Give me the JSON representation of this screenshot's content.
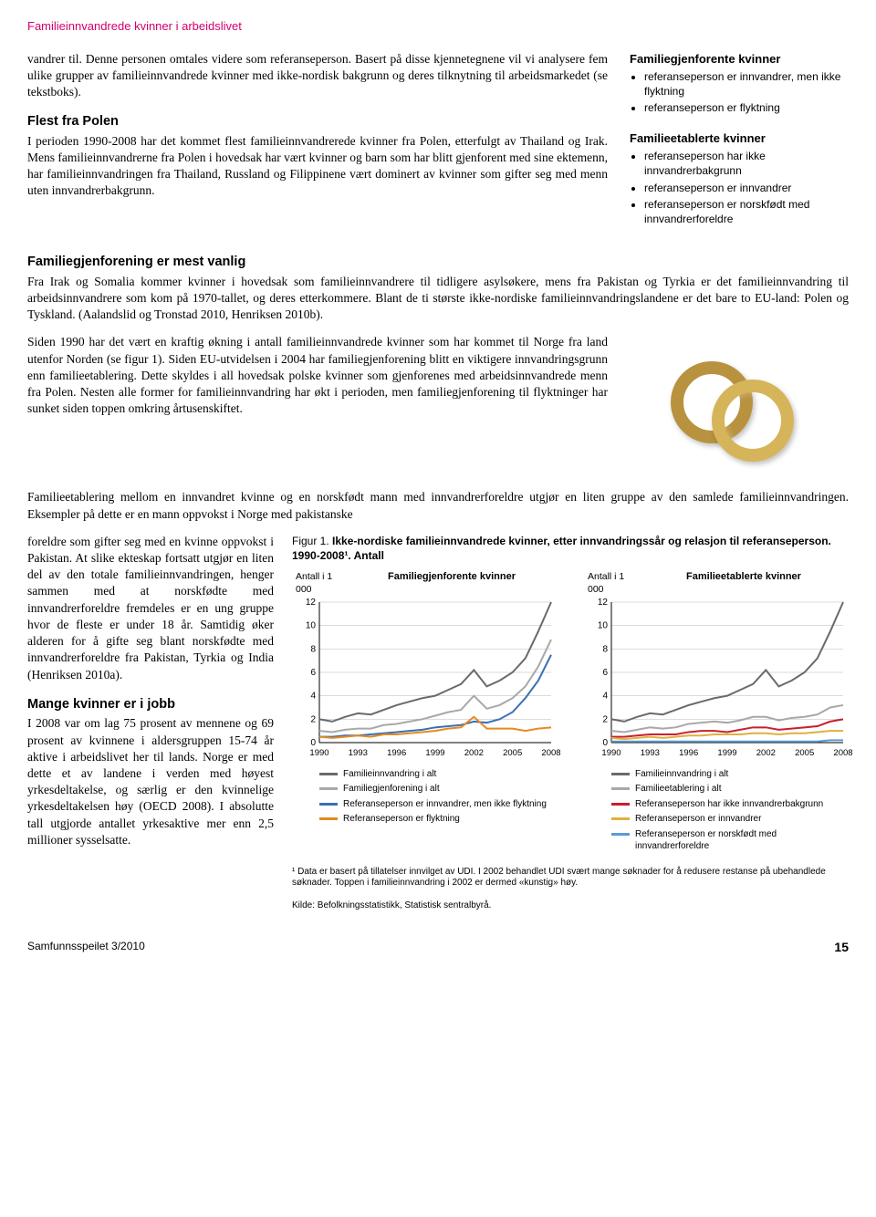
{
  "running_head": "Familieinnvandrede kvinner i arbeidslivet",
  "para1": "vandrer til. Denne personen omtales videre som referanseperson. Basert på disse kjennetegnene vil vi analysere fem ulike grupper av familieinnvandrede kvinner med ikke-nordisk bakgrunn og deres tilknytning til arbeidsmarkedet (se tekstboks).",
  "h_polen": "Flest fra Polen",
  "para_polen": "I perioden 1990-2008 har det kommet flest familieinnvandrerede kvinner fra Polen, etterfulgt av Thailand og Irak. Mens familieinnvandrerne fra Polen i hovedsak har vært kvinner og barn som har blitt gjenforent med sine ektemenn, har familieinnvandringen fra Thailand, Russland og Filippinene vært dominert av kvinner som gifter seg med menn uten innvandrerbakgrunn.",
  "h_gjenforening": "Familiegjenforening er mest vanlig",
  "para_gjen1": "Fra Irak og Somalia kommer kvinner i hovedsak som familieinnvandrere til tidligere asylsøkere, mens fra Pakistan og Tyrkia er det familieinnvandring til arbeidsinnvandrere som kom på 1970-tallet, og deres etterkommere. Blant de ti største ikke-nordiske familieinnvandringslandene er det bare to EU-land: Polen og Tyskland. (Aalandslid og Tronstad 2010, Henriksen 2010b).",
  "para_gjen2": "Siden 1990 har det vært en kraftig økning i antall familieinnvandrede kvinner som har kommet til Norge fra land utenfor Norden (se figur 1). Siden EU-utvidelsen i 2004 har familiegjenforening blitt en viktigere innvandringsgrunn enn familieetablering. Dette skyldes i all hovedsak polske kvinner som gjenforenes med arbeidsinnvandrede menn fra Polen. Nesten alle former for familieinnvandring har økt i perioden, men familiegjenforening til flyktninger har sunket siden toppen omkring årtusenskiftet.",
  "para_etab_intro": "Familieetablering mellom en innvandret kvinne og en norskfødt mann med innvandrerforeldre utgjør en liten gruppe av den samlede familieinnvandringen. Eksempler på dette er en mann oppvokst i Norge med pakistanske",
  "para_etab_cont": "foreldre som gifter seg med en kvinne oppvokst i Pakistan. At slike ekteskap fortsatt utgjør en liten del av den totale familieinnvandringen, henger sammen med at norskfødte med innvandrerforeldre fremdeles er en ung gruppe hvor de fleste er under 18 år. Samtidig øker alderen for å gifte seg blant norskfødte med innvandrerforeldre fra Pakistan, Tyrkia og India (Henriksen 2010a).",
  "h_jobb": "Mange kvinner er i jobb",
  "para_jobb": "I 2008 var om lag 75 prosent av mennene og 69 prosent av kvinnene i aldersgruppen 15-74 år aktive i arbeidslivet her til lands. Norge er med dette et av landene i verden med høyest yrkesdeltakelse, og særlig er den kvinnelige yrkesdeltakelsen høy (OECD 2008). I absolutte tall utgjorde antallet yrkesaktive mer enn 2,5 millioner sysselsatte.",
  "sidebox": {
    "box1_title": "Familiegjenforente kvinner",
    "box1_items": [
      "referanseperson er innvandrer, men ikke flyktning",
      "referanseperson er flyktning"
    ],
    "box2_title": "Familieetablerte kvinner",
    "box2_items": [
      "referanseperson har ikke innvandrerbakgrunn",
      "referanseperson er innvandrer",
      "referanseperson er norskfødt med innvandrerforeldre"
    ]
  },
  "figure": {
    "label": "Figur 1. ",
    "title": "Ikke-nordiske familieinnvandrede kvinner, etter innvandringssår og relasjon til referanseperson. 1990-2008¹. Antall",
    "y_axis_label": "Antall i 1 000",
    "chart1": {
      "title": "Familiegjenforente kvinner",
      "ymax": 12,
      "ystep": 2,
      "xticks": [
        1990,
        1993,
        1996,
        1999,
        2002,
        2005,
        2008
      ],
      "series": [
        {
          "name": "Familieinnvandring i alt",
          "color": "#6a6a6a",
          "values": [
            2.0,
            1.8,
            2.2,
            2.5,
            2.4,
            2.8,
            3.2,
            3.5,
            3.8,
            4.0,
            4.5,
            5.0,
            6.2,
            4.8,
            5.3,
            6.0,
            7.2,
            9.5,
            12.0
          ]
        },
        {
          "name": "Familiegjenforening i alt",
          "color": "#a8a8a8",
          "values": [
            1.0,
            0.9,
            1.1,
            1.2,
            1.2,
            1.5,
            1.6,
            1.8,
            2.0,
            2.3,
            2.6,
            2.8,
            4.0,
            2.9,
            3.2,
            3.8,
            4.8,
            6.5,
            8.8
          ]
        },
        {
          "name": "Referanseperson er innvandrer, men ikke flyktning",
          "color": "#3b6fb6",
          "values": [
            0.5,
            0.5,
            0.6,
            0.6,
            0.7,
            0.8,
            0.9,
            1.0,
            1.1,
            1.3,
            1.4,
            1.5,
            1.8,
            1.7,
            2.0,
            2.6,
            3.8,
            5.3,
            7.5
          ]
        },
        {
          "name": "Referanseperson er flyktning",
          "color": "#e58a1f",
          "values": [
            0.5,
            0.4,
            0.5,
            0.6,
            0.5,
            0.7,
            0.7,
            0.8,
            0.9,
            1.0,
            1.2,
            1.3,
            2.2,
            1.2,
            1.2,
            1.2,
            1.0,
            1.2,
            1.3
          ]
        }
      ],
      "legend": [
        {
          "label": "Familieinnvandring i alt",
          "color": "#6a6a6a"
        },
        {
          "label": "Familiegjenforening i alt",
          "color": "#a8a8a8"
        },
        {
          "label": "Referanseperson er innvandrer, men ikke flyktning",
          "color": "#3b6fb6"
        },
        {
          "label": "Referanseperson er flyktning",
          "color": "#e58a1f"
        }
      ]
    },
    "chart2": {
      "title": "Familieetablerte kvinner",
      "ymax": 12,
      "ystep": 2,
      "xticks": [
        1990,
        1993,
        1996,
        1999,
        2002,
        2005,
        2008
      ],
      "series": [
        {
          "name": "Familieinnvandring i alt",
          "color": "#6a6a6a",
          "values": [
            2.0,
            1.8,
            2.2,
            2.5,
            2.4,
            2.8,
            3.2,
            3.5,
            3.8,
            4.0,
            4.5,
            5.0,
            6.2,
            4.8,
            5.3,
            6.0,
            7.2,
            9.5,
            12.0
          ]
        },
        {
          "name": "Familieetablering i alt",
          "color": "#a8a8a8",
          "values": [
            1.0,
            0.9,
            1.1,
            1.3,
            1.2,
            1.3,
            1.6,
            1.7,
            1.8,
            1.7,
            1.9,
            2.2,
            2.2,
            1.9,
            2.1,
            2.2,
            2.4,
            3.0,
            3.2
          ]
        },
        {
          "name": "Referanseperson har ikke innvandrerbakgrunn",
          "color": "#c91f2e",
          "values": [
            0.5,
            0.5,
            0.6,
            0.7,
            0.7,
            0.7,
            0.9,
            1.0,
            1.0,
            0.9,
            1.1,
            1.3,
            1.3,
            1.1,
            1.2,
            1.3,
            1.4,
            1.8,
            2.0
          ]
        },
        {
          "name": "Referanseperson er innvandrer",
          "color": "#e0b040",
          "values": [
            0.4,
            0.3,
            0.4,
            0.5,
            0.4,
            0.5,
            0.6,
            0.6,
            0.7,
            0.7,
            0.7,
            0.8,
            0.8,
            0.7,
            0.8,
            0.8,
            0.9,
            1.0,
            1.0
          ]
        },
        {
          "name": "Referanseperson er norskfødt med innvandrerforeldre",
          "color": "#5a9bd4",
          "values": [
            0.1,
            0.1,
            0.1,
            0.1,
            0.1,
            0.1,
            0.1,
            0.1,
            0.1,
            0.1,
            0.1,
            0.1,
            0.1,
            0.1,
            0.1,
            0.1,
            0.1,
            0.2,
            0.2
          ]
        }
      ],
      "legend": [
        {
          "label": "Familieinnvandring i alt",
          "color": "#6a6a6a"
        },
        {
          "label": "Familieetablering i alt",
          "color": "#a8a8a8"
        },
        {
          "label": "Referanseperson har ikke innvandrerbakgrunn",
          "color": "#c91f2e"
        },
        {
          "label": "Referanseperson er innvandrer",
          "color": "#e0b040"
        },
        {
          "label": "Referanseperson er norskfødt med innvandrerforeldre",
          "color": "#5a9bd4"
        }
      ]
    },
    "footnote": "¹ Data er basert på tillatelser innvilget av UDI. I 2002 behandlet UDI svært mange søknader for å redusere restanse på ubehandlede søknader. Toppen i familieinnvandring i 2002 er dermed «kunstig» høy.",
    "source": "Kilde: Befolkningsstatistikk, Statistisk sentralbyrå."
  },
  "footer": {
    "left": "Samfunnsspeilet 3/2010",
    "page": "15"
  },
  "colors": {
    "magenta": "#d4006b",
    "grid": "#b8b8b8"
  }
}
